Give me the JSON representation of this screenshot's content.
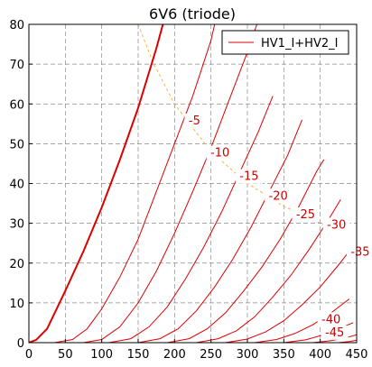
{
  "chart_data": {
    "type": "line",
    "title": "6V6  (triode)",
    "xlabel": "",
    "ylabel": "",
    "xlim": [
      0,
      450
    ],
    "ylim": [
      0,
      80
    ],
    "xticks": [
      0,
      50,
      100,
      150,
      200,
      250,
      300,
      350,
      400,
      450
    ],
    "yticks": [
      0,
      10,
      20,
      30,
      40,
      50,
      60,
      70,
      80
    ],
    "grid": true,
    "legend": {
      "position": "top-right",
      "entries": [
        "HV1_I+HV2_I"
      ]
    },
    "colors": {
      "curves": "#dd0000",
      "dissipation": "#f5b041",
      "grid": "#888888"
    },
    "series": [
      {
        "label": "",
        "points": [
          [
            0,
            0
          ],
          [
            10,
            0.7
          ],
          [
            25,
            3.5
          ],
          [
            50,
            13
          ],
          [
            75,
            23
          ],
          [
            100,
            34
          ],
          [
            125,
            46
          ],
          [
            150,
            59
          ],
          [
            175,
            74
          ],
          [
            184,
            80
          ]
        ]
      },
      {
        "label": "-5",
        "points": [
          [
            35,
            0
          ],
          [
            60,
            0.8
          ],
          [
            80,
            3.5
          ],
          [
            100,
            8.5
          ],
          [
            125,
            16.5
          ],
          [
            150,
            26
          ],
          [
            175,
            38
          ],
          [
            200,
            50
          ],
          [
            225,
            62
          ],
          [
            250,
            76
          ],
          [
            255,
            80
          ]
        ]
      },
      {
        "label": "-10",
        "points": [
          [
            75,
            0
          ],
          [
            100,
            0.8
          ],
          [
            125,
            4
          ],
          [
            150,
            10
          ],
          [
            175,
            18
          ],
          [
            200,
            27.5
          ],
          [
            225,
            38
          ],
          [
            250,
            49
          ],
          [
            275,
            61
          ],
          [
            300,
            73
          ],
          [
            313,
            80
          ]
        ]
      },
      {
        "label": "-15",
        "points": [
          [
            110,
            0
          ],
          [
            140,
            1
          ],
          [
            165,
            4
          ],
          [
            190,
            9
          ],
          [
            215,
            16
          ],
          [
            240,
            24
          ],
          [
            265,
            33
          ],
          [
            290,
            43
          ],
          [
            315,
            53
          ],
          [
            335,
            62
          ]
        ]
      },
      {
        "label": "-20",
        "points": [
          [
            150,
            0
          ],
          [
            180,
            1
          ],
          [
            205,
            3.5
          ],
          [
            230,
            8
          ],
          [
            255,
            14
          ],
          [
            280,
            21
          ],
          [
            305,
            29
          ],
          [
            330,
            38
          ],
          [
            355,
            47
          ],
          [
            375,
            56
          ]
        ]
      },
      {
        "label": "-25",
        "points": [
          [
            190,
            0
          ],
          [
            220,
            1
          ],
          [
            245,
            3.5
          ],
          [
            270,
            7.5
          ],
          [
            295,
            13
          ],
          [
            320,
            19
          ],
          [
            345,
            26
          ],
          [
            370,
            34
          ],
          [
            395,
            43
          ],
          [
            405,
            46
          ]
        ]
      },
      {
        "label": "-30",
        "points": [
          [
            230,
            0
          ],
          [
            260,
            1
          ],
          [
            285,
            3
          ],
          [
            310,
            6.5
          ],
          [
            335,
            11.5
          ],
          [
            360,
            17
          ],
          [
            385,
            23.5
          ],
          [
            410,
            30.5
          ],
          [
            428,
            36
          ]
        ]
      },
      {
        "label": "-35",
        "points": [
          [
            270,
            0
          ],
          [
            300,
            0.9
          ],
          [
            325,
            2.7
          ],
          [
            350,
            5.5
          ],
          [
            375,
            9.5
          ],
          [
            400,
            14
          ],
          [
            425,
            19.5
          ],
          [
            440,
            23
          ]
        ]
      },
      {
        "label": "-40",
        "points": [
          [
            310,
            0
          ],
          [
            340,
            0.8
          ],
          [
            365,
            2.3
          ],
          [
            390,
            4.5
          ],
          [
            415,
            7.5
          ],
          [
            440,
            11
          ]
        ]
      },
      {
        "label": "-45",
        "points": [
          [
            350,
            0
          ],
          [
            380,
            0.7
          ],
          [
            405,
            2
          ],
          [
            425,
            3.5
          ],
          [
            445,
            5
          ]
        ]
      },
      {
        "label": "",
        "points": [
          [
            390,
            0
          ],
          [
            415,
            0.5
          ],
          [
            435,
            1.2
          ],
          [
            450,
            2
          ]
        ]
      },
      {
        "label": "",
        "points": [
          [
            425,
            0
          ],
          [
            440,
            0.3
          ],
          [
            450,
            0.6
          ]
        ]
      }
    ],
    "dissipation_curve": {
      "points": [
        [
          150,
          80
        ],
        [
          170,
          70.6
        ],
        [
          200,
          60
        ],
        [
          250,
          48
        ],
        [
          300,
          40
        ],
        [
          350,
          34.3
        ],
        [
          400,
          30
        ],
        [
          430,
          27.9
        ]
      ]
    }
  }
}
